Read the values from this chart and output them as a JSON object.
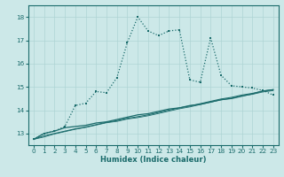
{
  "xlabel": "Humidex (Indice chaleur)",
  "bg_color": "#cce8e8",
  "line_color": "#1a6b6b",
  "grid_color": "#aed4d4",
  "xlim": [
    -0.5,
    23.5
  ],
  "ylim": [
    12.5,
    18.5
  ],
  "xticks": [
    0,
    1,
    2,
    3,
    4,
    5,
    6,
    7,
    8,
    9,
    10,
    11,
    12,
    13,
    14,
    15,
    16,
    17,
    18,
    19,
    20,
    21,
    22,
    23
  ],
  "yticks": [
    13,
    14,
    15,
    16,
    17,
    18
  ],
  "line1_x": [
    0,
    1,
    2,
    3,
    4,
    5,
    6,
    7,
    8,
    9,
    10,
    11,
    12,
    13,
    14,
    15,
    16,
    17,
    18,
    19,
    20,
    21,
    22,
    23
  ],
  "line1_y": [
    12.75,
    13.0,
    13.1,
    13.3,
    14.2,
    14.3,
    14.8,
    14.75,
    15.4,
    16.9,
    18.0,
    17.4,
    17.2,
    17.4,
    17.45,
    15.3,
    15.2,
    17.1,
    15.5,
    15.05,
    15.0,
    14.95,
    14.85,
    14.65
  ],
  "line2_x": [
    0,
    1,
    2,
    3,
    4,
    5,
    6,
    7,
    8,
    9,
    10,
    11,
    12,
    13,
    14,
    15,
    16,
    17,
    18,
    19,
    20,
    21,
    22,
    23
  ],
  "line2_y": [
    12.75,
    13.0,
    13.1,
    13.25,
    13.3,
    13.35,
    13.45,
    13.5,
    13.6,
    13.7,
    13.8,
    13.85,
    13.95,
    14.05,
    14.1,
    14.2,
    14.25,
    14.35,
    14.45,
    14.5,
    14.6,
    14.7,
    14.82,
    14.88
  ],
  "line3_x": [
    0,
    1,
    2,
    3,
    4,
    5,
    6,
    7,
    8,
    9,
    10,
    11,
    12,
    13,
    14,
    15,
    16,
    17,
    18,
    19,
    20,
    21,
    22,
    23
  ],
  "line3_y": [
    12.75,
    12.9,
    13.0,
    13.1,
    13.2,
    13.28,
    13.38,
    13.48,
    13.55,
    13.65,
    13.72,
    13.8,
    13.9,
    14.0,
    14.1,
    14.18,
    14.28,
    14.38,
    14.48,
    14.55,
    14.65,
    14.72,
    14.82,
    14.88
  ],
  "line4_x": [
    0,
    1,
    2,
    3,
    4,
    5,
    6,
    7,
    8,
    9,
    10,
    11,
    12,
    13,
    14,
    15,
    16,
    17,
    18,
    19,
    20,
    21,
    22,
    23
  ],
  "line4_y": [
    12.75,
    12.85,
    12.98,
    13.08,
    13.18,
    13.26,
    13.36,
    13.46,
    13.52,
    13.62,
    13.68,
    13.76,
    13.86,
    13.96,
    14.06,
    14.14,
    14.24,
    14.34,
    14.44,
    14.51,
    14.61,
    14.68,
    14.78,
    14.84
  ]
}
